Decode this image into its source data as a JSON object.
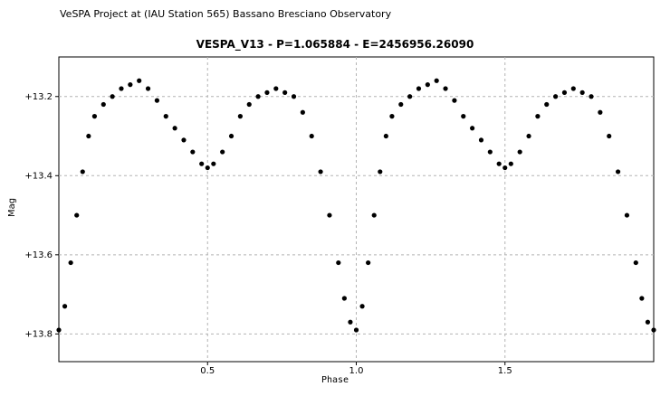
{
  "header": "VeSPA Project at (IAU Station 565) Bassano Bresciano Observatory",
  "chart_data": {
    "type": "scatter",
    "title": "VESPA_V13  -  P=1.065884  -  E=2456956.26090",
    "xlabel": "Phase",
    "ylabel": "Mag",
    "xlim": [
      0.0,
      2.0
    ],
    "ylim": [
      13.1,
      13.87
    ],
    "y_inverted": true,
    "grid": true,
    "xticks": [
      0.5,
      1.0,
      1.5
    ],
    "xtick_labels": [
      "0.5",
      "1.0",
      "1.5"
    ],
    "yticks": [
      13.2,
      13.4,
      13.6,
      13.8
    ],
    "ytick_labels": [
      "+13.2",
      "+13.4",
      "+13.6",
      "+13.8"
    ],
    "marker_color": "#000000",
    "grid_color": "#b4b4b4",
    "series": [
      {
        "x": [
          0.0,
          0.02,
          0.04,
          0.06,
          0.08,
          0.1,
          0.12,
          0.15,
          0.18,
          0.21,
          0.24,
          0.27,
          0.3,
          0.33,
          0.36,
          0.39,
          0.42,
          0.45,
          0.48,
          0.5,
          0.52,
          0.55,
          0.58,
          0.61,
          0.64,
          0.67,
          0.7,
          0.73,
          0.76,
          0.79,
          0.82,
          0.85,
          0.88,
          0.91,
          0.94,
          0.96,
          0.98,
          1.0,
          1.02,
          1.04,
          1.06,
          1.08,
          1.1,
          1.12,
          1.15,
          1.18,
          1.21,
          1.24,
          1.27,
          1.3,
          1.33,
          1.36,
          1.39,
          1.42,
          1.45,
          1.48,
          1.5,
          1.52,
          1.55,
          1.58,
          1.61,
          1.64,
          1.67,
          1.7,
          1.73,
          1.76,
          1.79,
          1.82,
          1.85,
          1.88,
          1.91,
          1.94,
          1.96,
          1.98,
          2.0
        ],
        "y": [
          13.79,
          13.73,
          13.62,
          13.5,
          13.39,
          13.3,
          13.25,
          13.22,
          13.2,
          13.18,
          13.17,
          13.16,
          13.18,
          13.21,
          13.25,
          13.28,
          13.31,
          13.34,
          13.37,
          13.38,
          13.37,
          13.34,
          13.3,
          13.25,
          13.22,
          13.2,
          13.19,
          13.18,
          13.19,
          13.2,
          13.24,
          13.3,
          13.39,
          13.5,
          13.62,
          13.71,
          13.77,
          13.79,
          13.73,
          13.62,
          13.5,
          13.39,
          13.3,
          13.25,
          13.22,
          13.2,
          13.18,
          13.17,
          13.16,
          13.18,
          13.21,
          13.25,
          13.28,
          13.31,
          13.34,
          13.37,
          13.38,
          13.37,
          13.34,
          13.3,
          13.25,
          13.22,
          13.2,
          13.19,
          13.18,
          13.19,
          13.2,
          13.24,
          13.3,
          13.39,
          13.5,
          13.62,
          13.71,
          13.77,
          13.79
        ]
      }
    ]
  }
}
